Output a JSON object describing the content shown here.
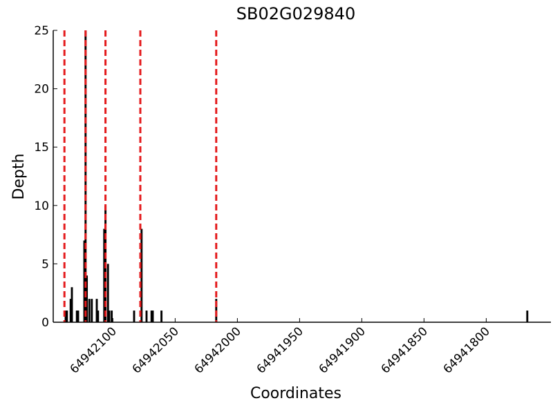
{
  "chart_data": {
    "type": "bar",
    "title": "SB02G029840",
    "x_label": "Coordinates",
    "y_label": "Depth",
    "x": [
      64942138,
      64942137,
      64942134,
      64942133,
      64942129,
      64942128,
      64942123,
      64942122,
      64942121,
      64942119,
      64942117,
      64942113,
      64942112,
      64942107,
      64942106,
      64942104,
      64942103,
      64942101,
      64942083,
      64942077,
      64942073,
      64942069,
      64942068,
      64942061,
      64942017,
      64941767
    ],
    "values": [
      1,
      1,
      2,
      3,
      1,
      1,
      7,
      25,
      4,
      2,
      2,
      2,
      1,
      8,
      10,
      5,
      1,
      1,
      1,
      8,
      1,
      1,
      1,
      1,
      2,
      1
    ],
    "color": "#000000",
    "vlines": {
      "x": [
        64942139,
        64942122,
        64942106,
        64942078,
        64942017
      ],
      "color": "#e41a1c",
      "dashed": true
    },
    "xlim": [
      64942148,
      64941748
    ],
    "xticks": [
      64942100,
      64942050,
      64942000,
      64941950,
      64941900,
      64941850,
      64941800
    ],
    "ylim": [
      0,
      25
    ],
    "yticks": [
      0,
      5,
      10,
      15,
      20,
      25
    ],
    "grid": false
  }
}
